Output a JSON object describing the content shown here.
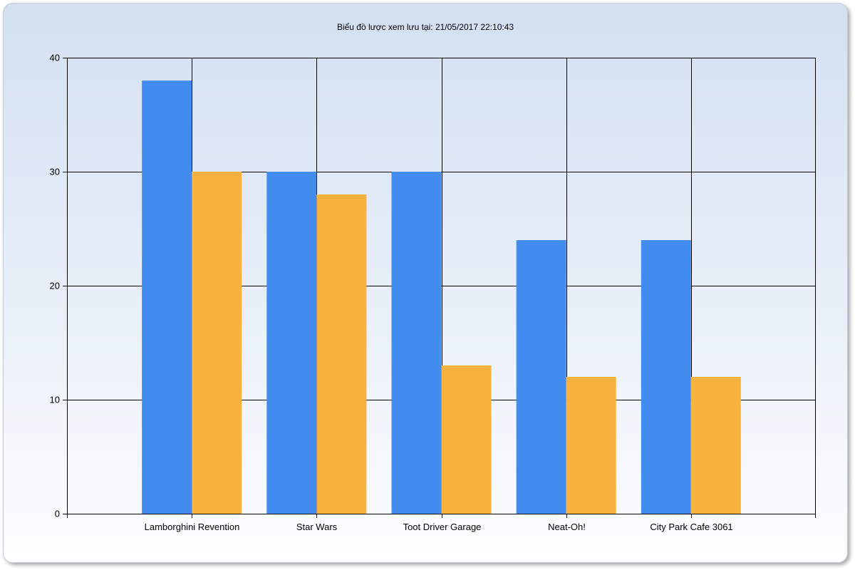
{
  "chart_data": {
    "type": "bar",
    "title": "Biểu đồ lược xem lưu tại: 21/05/2017 22:10:43",
    "xlabel": "",
    "ylabel": "",
    "categories": [
      "Lamborghini Revention",
      "Star Wars",
      "Toot Driver Garage",
      "Neat-Oh!",
      "City Park Cafe 3061"
    ],
    "series": [
      {
        "values": [
          38,
          30,
          30,
          24,
          24
        ],
        "color": "#428cf0"
      },
      {
        "values": [
          30,
          28,
          13,
          12,
          12
        ],
        "color": "#f9b23f"
      }
    ],
    "ylim": [
      0,
      40
    ],
    "yticks": [
      0,
      10,
      20,
      30,
      40
    ],
    "grid": true,
    "legend": "none"
  }
}
